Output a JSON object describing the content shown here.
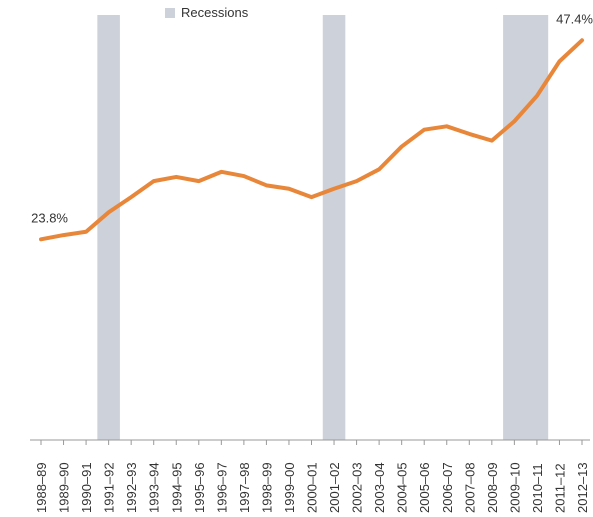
{
  "chart_data": {
    "type": "line",
    "legend": "Recessions",
    "recessions": [
      {
        "start": "1990–91",
        "end": "1991–92"
      },
      {
        "start": "2000–01",
        "end": "2001–02"
      },
      {
        "start": "2008–09",
        "end": "2010–11"
      }
    ],
    "recession_color": "#cdd1d9",
    "categories": [
      "1988–89",
      "1989–90",
      "1990–91",
      "1991–92",
      "1992–93",
      "1993–94",
      "1994–95",
      "1995–96",
      "1996–97",
      "1997–98",
      "1998–99",
      "1999–00",
      "2000–01",
      "2001–02",
      "2002–03",
      "2003–04",
      "2004–05",
      "2005–06",
      "2006–07",
      "2007–08",
      "2008–09",
      "2009–10",
      "2010–11",
      "2011–12",
      "2012–13"
    ],
    "values": [
      23.8,
      24.3,
      24.7,
      27.0,
      28.8,
      30.7,
      31.2,
      30.7,
      31.8,
      31.3,
      30.2,
      29.8,
      28.8,
      29.8,
      30.7,
      32.1,
      34.8,
      36.8,
      37.2,
      36.3,
      35.5,
      37.8,
      40.8,
      44.9,
      47.4
    ],
    "value_labels": [
      "23.8%",
      null,
      null,
      null,
      null,
      null,
      null,
      null,
      null,
      null,
      null,
      null,
      null,
      null,
      null,
      null,
      null,
      null,
      null,
      null,
      null,
      null,
      null,
      null,
      "47.4%"
    ],
    "color": "#e8873a",
    "ylim": [
      0,
      50.4
    ]
  }
}
